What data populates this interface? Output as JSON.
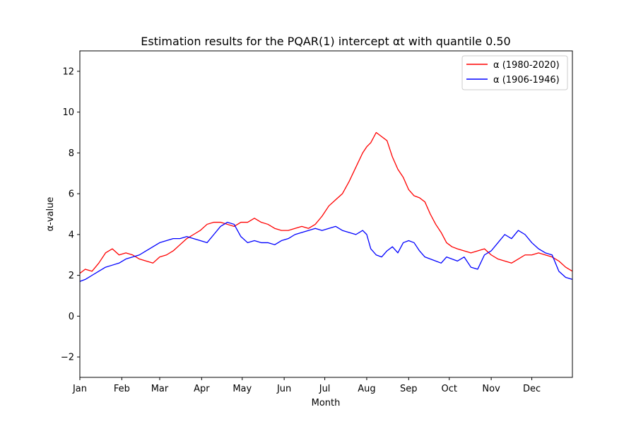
{
  "chart_data": {
    "type": "line",
    "title": "Estimation results for the PQAR(1) intercept αt with quantile 0.50",
    "xlabel": "Month",
    "ylabel": "α-value",
    "xlim": [
      1,
      365
    ],
    "ylim": [
      -3,
      13
    ],
    "yticks": [
      -2,
      0,
      2,
      4,
      6,
      8,
      10,
      12
    ],
    "xticks": [
      {
        "label": "Jan",
        "day": 1
      },
      {
        "label": "Feb",
        "day": 32
      },
      {
        "label": "Mar",
        "day": 60
      },
      {
        "label": "Apr",
        "day": 91
      },
      {
        "label": "May",
        "day": 121
      },
      {
        "label": "Jun",
        "day": 152
      },
      {
        "label": "Jul",
        "day": 182
      },
      {
        "label": "Aug",
        "day": 213
      },
      {
        "label": "Sep",
        "day": 244
      },
      {
        "label": "Oct",
        "day": 274
      },
      {
        "label": "Nov",
        "day": 305
      },
      {
        "label": "Dec",
        "day": 335
      }
    ],
    "grid": false,
    "legend": "top-right",
    "series": [
      {
        "name": "α (1980-2020)",
        "color": "#ff0000",
        "day": [
          1,
          5,
          10,
          15,
          20,
          25,
          30,
          35,
          40,
          45,
          50,
          55,
          60,
          65,
          70,
          75,
          80,
          85,
          90,
          95,
          100,
          105,
          110,
          115,
          120,
          125,
          130,
          135,
          140,
          145,
          150,
          155,
          160,
          165,
          170,
          175,
          180,
          185,
          190,
          195,
          200,
          205,
          210,
          213,
          216,
          220,
          224,
          228,
          232,
          236,
          240,
          244,
          248,
          252,
          256,
          260,
          264,
          268,
          272,
          276,
          280,
          285,
          290,
          295,
          300,
          305,
          310,
          315,
          320,
          325,
          330,
          335,
          340,
          345,
          350,
          355,
          360,
          365
        ],
        "values": [
          2.1,
          2.3,
          2.2,
          2.6,
          3.1,
          3.3,
          3.0,
          3.1,
          3.0,
          2.8,
          2.7,
          2.6,
          2.9,
          3.0,
          3.2,
          3.5,
          3.8,
          4.0,
          4.2,
          4.5,
          4.6,
          4.6,
          4.5,
          4.4,
          4.6,
          4.6,
          4.8,
          4.6,
          4.5,
          4.3,
          4.2,
          4.2,
          4.3,
          4.4,
          4.3,
          4.5,
          4.9,
          5.4,
          5.7,
          6.0,
          6.6,
          7.3,
          8.0,
          8.3,
          8.5,
          9.0,
          8.8,
          8.6,
          7.8,
          7.2,
          6.8,
          6.2,
          5.9,
          5.8,
          5.6,
          5.0,
          4.5,
          4.1,
          3.6,
          3.4,
          3.3,
          3.2,
          3.1,
          3.2,
          3.3,
          3.0,
          2.8,
          2.7,
          2.6,
          2.8,
          3.0,
          3.0,
          3.1,
          3.0,
          2.9,
          2.7,
          2.4,
          2.2
        ]
      },
      {
        "name": "α (1906-1946)",
        "color": "#0000ff",
        "day": [
          1,
          5,
          10,
          15,
          20,
          25,
          30,
          35,
          40,
          45,
          50,
          55,
          60,
          65,
          70,
          75,
          80,
          85,
          90,
          95,
          100,
          105,
          110,
          115,
          120,
          125,
          130,
          135,
          140,
          145,
          150,
          155,
          160,
          165,
          170,
          175,
          180,
          185,
          190,
          195,
          200,
          205,
          210,
          213,
          216,
          220,
          224,
          228,
          232,
          236,
          240,
          244,
          248,
          252,
          256,
          260,
          264,
          268,
          272,
          276,
          280,
          285,
          290,
          295,
          300,
          305,
          310,
          315,
          320,
          325,
          330,
          335,
          340,
          345,
          350,
          355,
          360,
          365
        ],
        "values": [
          1.7,
          1.8,
          2.0,
          2.2,
          2.4,
          2.5,
          2.6,
          2.8,
          2.9,
          3.0,
          3.2,
          3.4,
          3.6,
          3.7,
          3.8,
          3.8,
          3.9,
          3.8,
          3.7,
          3.6,
          4.0,
          4.4,
          4.6,
          4.5,
          3.9,
          3.6,
          3.7,
          3.6,
          3.6,
          3.5,
          3.7,
          3.8,
          4.0,
          4.1,
          4.2,
          4.3,
          4.2,
          4.3,
          4.4,
          4.2,
          4.1,
          4.0,
          4.2,
          4.0,
          3.3,
          3.0,
          2.9,
          3.2,
          3.4,
          3.1,
          3.6,
          3.7,
          3.6,
          3.2,
          2.9,
          2.8,
          2.7,
          2.6,
          2.9,
          2.8,
          2.7,
          2.9,
          2.4,
          2.3,
          3.0,
          3.2,
          3.6,
          4.0,
          3.8,
          4.2,
          4.0,
          3.6,
          3.3,
          3.1,
          3.0,
          2.2,
          1.9,
          1.8
        ]
      }
    ]
  }
}
